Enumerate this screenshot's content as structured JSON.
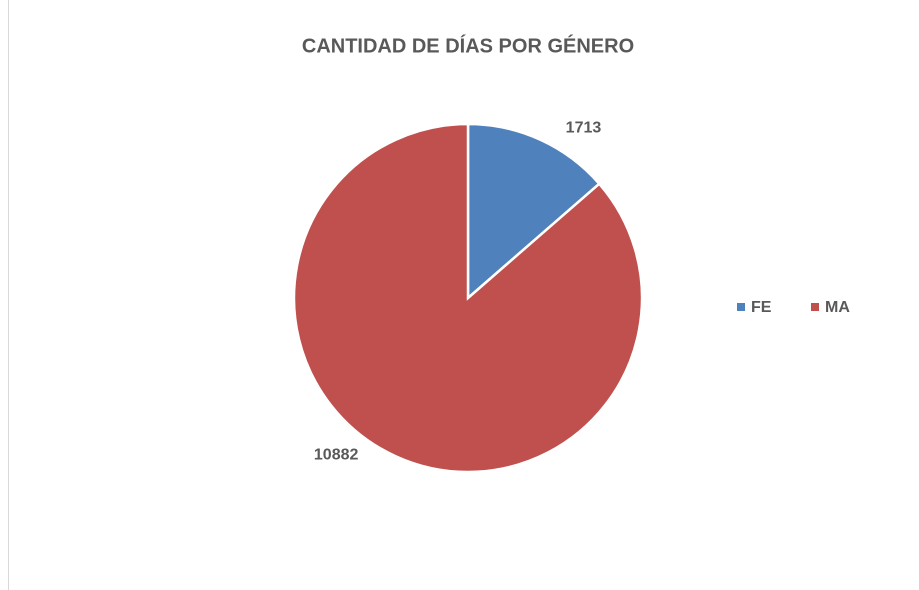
{
  "chart_data": {
    "type": "pie",
    "title": "CANTIDAD DE DÍAS POR GÉNERO",
    "categories": [
      "FE",
      "MA"
    ],
    "values": [
      1713,
      10882
    ],
    "colors": [
      "#4f81bd",
      "#c0504d"
    ],
    "legend": "right"
  }
}
